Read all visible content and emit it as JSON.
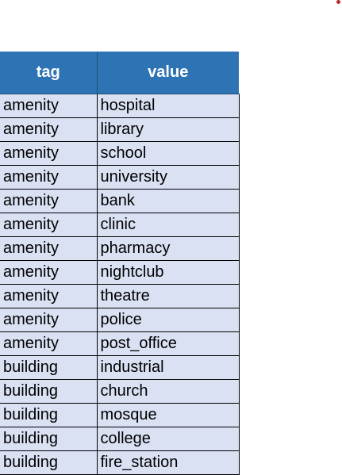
{
  "accent_color": "#c0242a",
  "header_color": "#2e74b5",
  "row_color": "#dae1f3",
  "table": {
    "columns": [
      "tag",
      "value"
    ],
    "rows": [
      [
        "amenity",
        "hospital"
      ],
      [
        "amenity",
        "library"
      ],
      [
        "amenity",
        "school"
      ],
      [
        "amenity",
        "university"
      ],
      [
        "amenity",
        "bank"
      ],
      [
        "amenity",
        "clinic"
      ],
      [
        "amenity",
        "pharmacy"
      ],
      [
        "amenity",
        "nightclub"
      ],
      [
        "amenity",
        "theatre"
      ],
      [
        "amenity",
        "police"
      ],
      [
        "amenity",
        "post_office"
      ],
      [
        "building",
        "industrial"
      ],
      [
        "building",
        "church"
      ],
      [
        "building",
        "mosque"
      ],
      [
        "building",
        "college"
      ],
      [
        "building",
        "fire_station"
      ]
    ]
  }
}
